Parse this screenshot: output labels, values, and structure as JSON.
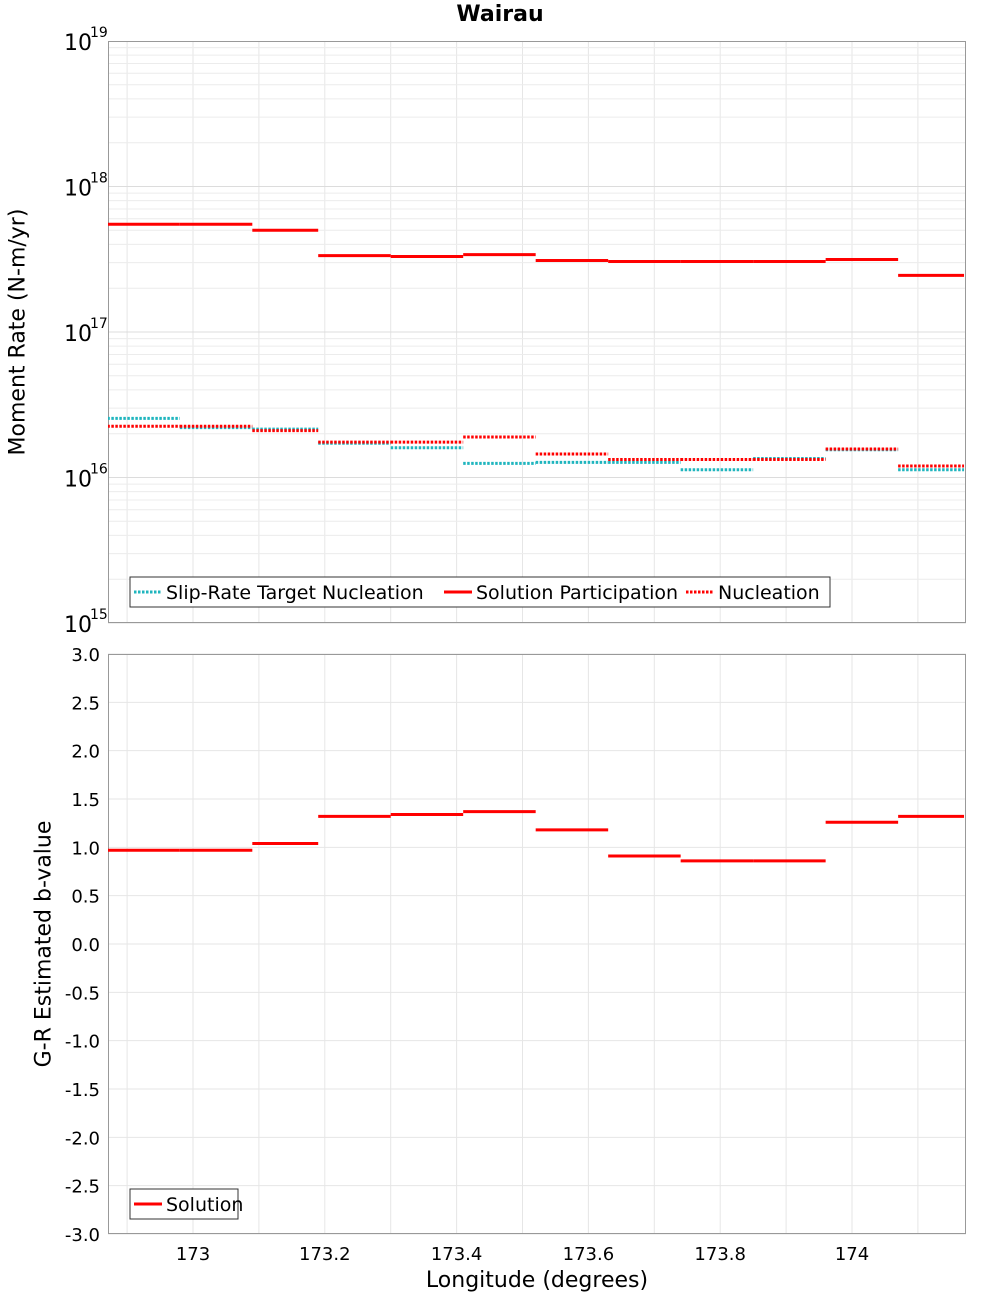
{
  "title": "Wairau",
  "xlabel": "Longitude (degrees)",
  "chart_data": [
    {
      "type": "line",
      "ylabel": "Moment Rate (N-m/yr)",
      "yscale": "log",
      "ylim": [
        1000000000000000.0,
        1e+19
      ],
      "xlim": [
        172.87,
        173.17
      ],
      "x_ticks": [
        173,
        173.2,
        173.4,
        173.6,
        173.8,
        174
      ],
      "x_tick_labels": [
        "173",
        "173.2",
        "173.4",
        "173.6",
        "173.8",
        "174"
      ],
      "y_ticks": [
        15,
        16,
        17,
        18,
        19
      ],
      "y_tick_base": "10",
      "grid": true,
      "legend_position": "bottom-left",
      "bins": [
        [
          172.87,
          172.98
        ],
        [
          172.98,
          173.09
        ],
        [
          173.09,
          173.19
        ],
        [
          173.19,
          173.3
        ],
        [
          173.3,
          173.41
        ],
        [
          173.41,
          173.52
        ],
        [
          173.52,
          173.63
        ],
        [
          173.63,
          173.74
        ],
        [
          173.74,
          173.85
        ],
        [
          173.85,
          173.96
        ],
        [
          173.96,
          174.07
        ],
        [
          174.07,
          174.17
        ]
      ],
      "series": [
        {
          "name": "Slip-Rate Target Nucleation",
          "color": "#1fb5be",
          "style": "dotted",
          "values": [
            2.55e+16,
            2.2e+16,
            2.15e+16,
            1.72e+16,
            1.6e+16,
            1.25e+16,
            1.27e+16,
            1.27e+16,
            1.13e+16,
            1.35e+16,
            1.55e+16,
            1.13e+16
          ]
        },
        {
          "name": "Solution Participation",
          "color": "#ff0000",
          "style": "solid",
          "values": [
            5.5e+17,
            5.5e+17,
            5e+17,
            3.35e+17,
            3.3e+17,
            3.4e+17,
            3.1e+17,
            3.05e+17,
            3.05e+17,
            3.05e+17,
            3.15e+17,
            2.45e+17
          ]
        },
        {
          "name": "Nucleation",
          "color": "#ff0000",
          "style": "dotted",
          "values": [
            2.25e+16,
            2.25e+16,
            2.1e+16,
            1.75e+16,
            1.75e+16,
            1.9e+16,
            1.45e+16,
            1.33e+16,
            1.33e+16,
            1.33e+16,
            1.57e+16,
            1.2e+16
          ]
        }
      ]
    },
    {
      "type": "line",
      "ylabel": "G-R Estimated b-value",
      "ylim": [
        -3.0,
        3.0
      ],
      "y_ticks": [
        -3.0,
        -2.5,
        -2.0,
        -1.5,
        -1.0,
        -0.5,
        0.0,
        0.5,
        1.0,
        1.5,
        2.0,
        2.5,
        3.0
      ],
      "y_tick_labels": [
        "-3.0",
        "-2.5",
        "-2.0",
        "-1.5",
        "-1.0",
        "-0.5",
        "0.0",
        "0.5",
        "1.0",
        "1.5",
        "2.0",
        "2.5",
        "3.0"
      ],
      "grid": true,
      "legend_position": "bottom-left",
      "series": [
        {
          "name": "Solution",
          "color": "#ff0000",
          "style": "solid",
          "values": [
            0.97,
            0.97,
            1.04,
            1.32,
            1.34,
            1.37,
            1.18,
            0.91,
            0.86,
            0.86,
            1.26,
            1.32
          ]
        }
      ]
    }
  ]
}
